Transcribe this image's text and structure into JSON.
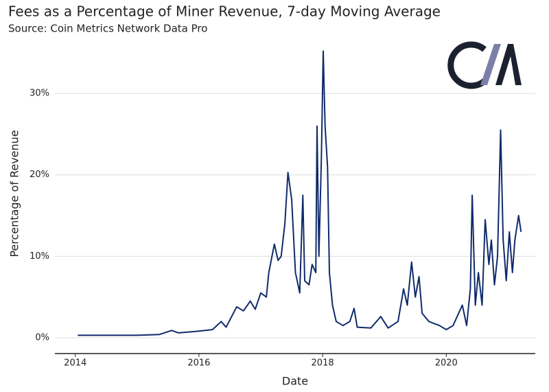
{
  "chart_data": {
    "type": "line",
    "title": "Fees as a Percentage of Miner Revenue, 7-day Moving Average",
    "subtitle": "Source: Coin Metrics Network Data Pro",
    "x_label": "Date",
    "y_label": "Percentage of Revenue",
    "x": [
      2014.04,
      2015.0,
      2015.36,
      2015.56,
      2015.67,
      2015.98,
      2016.22,
      2016.36,
      2016.44,
      2016.61,
      2016.72,
      2016.83,
      2016.91,
      2017.0,
      2017.09,
      2017.13,
      2017.22,
      2017.28,
      2017.33,
      2017.39,
      2017.44,
      2017.5,
      2017.56,
      2017.63,
      2017.68,
      2017.71,
      2017.78,
      2017.83,
      2017.89,
      2017.91,
      2017.94,
      2017.98,
      2018.01,
      2018.04,
      2018.08,
      2018.11,
      2018.16,
      2018.22,
      2018.33,
      2018.44,
      2018.51,
      2018.56,
      2018.78,
      2018.94,
      2019.06,
      2019.22,
      2019.31,
      2019.37,
      2019.44,
      2019.5,
      2019.56,
      2019.61,
      2019.72,
      2019.89,
      2020.0,
      2020.11,
      2020.26,
      2020.33,
      2020.39,
      2020.42,
      2020.47,
      2020.52,
      2020.58,
      2020.63,
      2020.69,
      2020.73,
      2020.78,
      2020.83,
      2020.88,
      2020.92,
      2020.97,
      2021.02,
      2021.07,
      2021.11,
      2021.17,
      2021.21
    ],
    "series": [
      {
        "name": "Fees as a Percentage of Miner Revenue",
        "color": "#0f2a6b",
        "values": [
          0.3,
          0.3,
          0.4,
          0.9,
          0.6,
          0.8,
          1.0,
          2.0,
          1.3,
          3.8,
          3.3,
          4.5,
          3.5,
          5.5,
          5.0,
          8.0,
          11.5,
          9.5,
          10,
          14,
          20.3,
          17,
          8,
          5.5,
          17.5,
          7,
          6.5,
          9,
          8,
          26,
          10,
          22,
          35.2,
          26,
          21,
          8,
          4,
          2,
          1.5,
          2.0,
          3.6,
          1.3,
          1.2,
          2.6,
          1.2,
          2.0,
          6.0,
          4.0,
          9.3,
          5.0,
          7.5,
          3.0,
          2.0,
          1.5,
          1.0,
          1.5,
          4.0,
          1.5,
          6.0,
          17.5,
          4.0,
          8,
          4,
          14.5,
          9,
          12,
          6.5,
          10,
          25.5,
          12,
          7,
          13,
          8,
          12,
          15,
          13
        ]
      }
    ],
    "xlim": [
      2013.67,
      2021.44
    ],
    "xticks": [
      2014,
      2016,
      2018,
      2020
    ],
    "ylim": [
      -1.94,
      36.5
    ],
    "yticks": [
      {
        "value": 0,
        "label": "0%"
      },
      {
        "value": 10,
        "label": "10%"
      },
      {
        "value": 20,
        "label": "20%"
      },
      {
        "value": 30,
        "label": "30%"
      }
    ],
    "grid": true
  }
}
